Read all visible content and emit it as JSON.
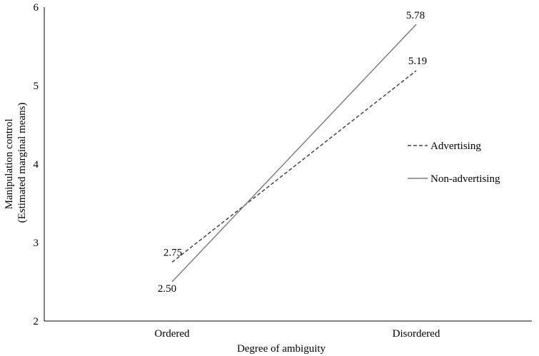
{
  "chart_data": {
    "type": "line",
    "title": "",
    "xlabel": "Degree of ambiguity",
    "ylabel_lines": [
      "Manipulation control",
      "(Estimated  marginal means)"
    ],
    "categories": [
      "Ordered",
      "Disordered"
    ],
    "ylim": [
      2,
      6
    ],
    "yticks": [
      2,
      3,
      4,
      5,
      6
    ],
    "grid": false,
    "legend_position": "right",
    "series": [
      {
        "name": "Advertising",
        "values": [
          2.75,
          5.19
        ],
        "data_labels": [
          "2.75",
          "5.19"
        ],
        "style": "dashed",
        "color": "#444444"
      },
      {
        "name": "Non-advertising",
        "values": [
          2.5,
          5.78
        ],
        "data_labels": [
          "2.50",
          "5.78"
        ],
        "style": "solid",
        "color": "#7f7f7f"
      }
    ]
  }
}
